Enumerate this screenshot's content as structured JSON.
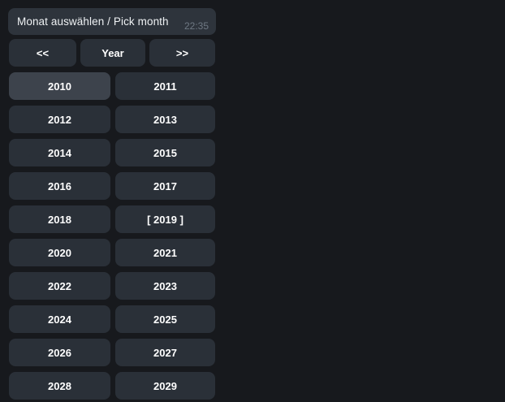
{
  "colors": {
    "background": "#17191d",
    "bubble": "#2e343c",
    "button": "#2a3038",
    "button_hovered": "#3d434c",
    "message_text": "#eef1f3",
    "time_text": "#6e7883",
    "button_text": "#ffffff"
  },
  "message": {
    "text": "Monat auswählen / Pick month",
    "time": "22:35"
  },
  "keyboard": {
    "nav": {
      "prev": "<<",
      "mode": "Year",
      "next": ">>"
    },
    "years": [
      [
        "2010",
        "2011"
      ],
      [
        "2012",
        "2013"
      ],
      [
        "2014",
        "2015"
      ],
      [
        "2016",
        "2017"
      ],
      [
        "2018",
        "[ 2019 ]"
      ],
      [
        "2020",
        "2021"
      ],
      [
        "2022",
        "2023"
      ],
      [
        "2024",
        "2025"
      ],
      [
        "2026",
        "2027"
      ],
      [
        "2028",
        "2029"
      ]
    ],
    "hovered_year": "2010",
    "selected_year": "2019"
  }
}
